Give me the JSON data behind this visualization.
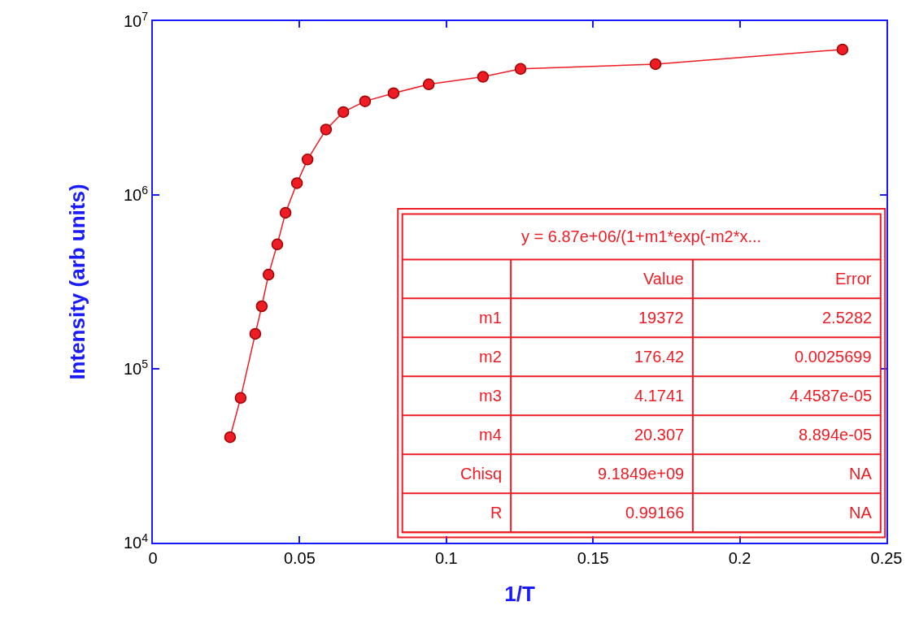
{
  "chart_data": {
    "type": "line",
    "xlabel": "1/T",
    "ylabel": "Intensity (arb units)",
    "log": "y",
    "marker": "circle",
    "line_style": "solid",
    "xlim": [
      0,
      0.25
    ],
    "xticks": [
      0,
      0.05,
      0.1,
      0.15,
      0.2,
      0.25
    ],
    "ylim": [
      10000,
      10000000
    ],
    "yticks": [
      {
        "value": 10000,
        "label": "10$^{4}$"
      },
      {
        "value": 100000,
        "label": "10$^{5}$"
      },
      {
        "value": 1000000,
        "label": "10$^{6}$"
      },
      {
        "value": 10000000,
        "label": "10$^{7}$"
      }
    ],
    "x": [
      0.0263,
      0.0299,
      0.0349,
      0.0371,
      0.0394,
      0.0424,
      0.0452,
      0.0491,
      0.0527,
      0.059,
      0.0649,
      0.0723,
      0.082,
      0.094,
      0.1125,
      0.1253,
      0.1713,
      0.235
    ],
    "series": [
      {
        "color": "#ee1c24",
        "values": [
          40400,
          68000,
          159000,
          229000,
          348000,
          520000,
          790000,
          1170000,
          1600000,
          2380000,
          3000000,
          3460000,
          3850000,
          4330000,
          4780000,
          5310000,
          5660000,
          6870000
        ]
      }
    ],
    "annotations": [
      "y = 6.87e+06/(1+m1*exp(-m2*x...",
      "Value",
      "Error",
      "m1",
      "19372",
      "2.5282",
      "m2",
      "176.42",
      "0.0025699",
      "m3",
      "4.1741",
      "4.4587e-05",
      "m4",
      "20.307",
      "8.894e-05",
      "Chisq",
      "9.1849e+09",
      "NA",
      "R",
      "0.99166",
      "NA"
    ]
  }
}
